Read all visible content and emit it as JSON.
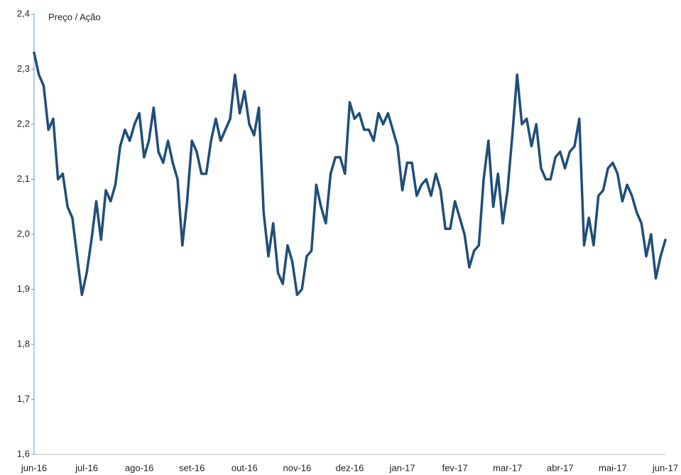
{
  "chart_data": {
    "type": "line",
    "title": "Preço / Ação",
    "categories": [
      "jun-16",
      null,
      null,
      null,
      null,
      null,
      null,
      null,
      null,
      null,
      null,
      "jul-16",
      null,
      null,
      null,
      null,
      null,
      null,
      null,
      null,
      null,
      null,
      "ago-16",
      null,
      null,
      null,
      null,
      null,
      null,
      null,
      null,
      null,
      null,
      "set-16",
      null,
      null,
      null,
      null,
      null,
      null,
      null,
      null,
      null,
      null,
      "out-16",
      null,
      null,
      null,
      null,
      null,
      null,
      null,
      null,
      null,
      null,
      "nov-16",
      null,
      null,
      null,
      null,
      null,
      null,
      null,
      null,
      null,
      null,
      "dez-16",
      null,
      null,
      null,
      null,
      null,
      null,
      null,
      null,
      null,
      null,
      "jan-17",
      null,
      null,
      null,
      null,
      null,
      null,
      null,
      null,
      null,
      null,
      "fev-17",
      null,
      null,
      null,
      null,
      null,
      null,
      null,
      null,
      null,
      null,
      "mar-17",
      null,
      null,
      null,
      null,
      null,
      null,
      null,
      null,
      null,
      null,
      "abr-17",
      null,
      null,
      null,
      null,
      null,
      null,
      null,
      null,
      null,
      null,
      "mai-17",
      null,
      null,
      null,
      null,
      null,
      null,
      null,
      null,
      null,
      null,
      "jun-17"
    ],
    "values": [
      2.33,
      2.29,
      2.27,
      2.19,
      2.21,
      2.1,
      2.11,
      2.05,
      2.03,
      1.96,
      1.89,
      1.93,
      1.99,
      2.06,
      1.99,
      2.08,
      2.06,
      2.09,
      2.16,
      2.19,
      2.17,
      2.2,
      2.22,
      2.14,
      2.17,
      2.23,
      2.15,
      2.13,
      2.17,
      2.13,
      2.1,
      1.98,
      2.06,
      2.17,
      2.15,
      2.11,
      2.11,
      2.17,
      2.21,
      2.17,
      2.19,
      2.21,
      2.29,
      2.22,
      2.26,
      2.2,
      2.18,
      2.23,
      2.04,
      1.96,
      2.02,
      1.93,
      1.91,
      1.98,
      1.95,
      1.89,
      1.9,
      1.96,
      1.97,
      2.09,
      2.05,
      2.02,
      2.11,
      2.14,
      2.14,
      2.11,
      2.24,
      2.21,
      2.22,
      2.19,
      2.19,
      2.17,
      2.22,
      2.2,
      2.22,
      2.19,
      2.16,
      2.08,
      2.13,
      2.13,
      2.07,
      2.09,
      2.1,
      2.07,
      2.11,
      2.08,
      2.01,
      2.01,
      2.06,
      2.03,
      2.0,
      1.94,
      1.97,
      1.98,
      2.1,
      2.17,
      2.05,
      2.11,
      2.02,
      2.08,
      2.18,
      2.29,
      2.2,
      2.21,
      2.16,
      2.2,
      2.12,
      2.1,
      2.1,
      2.14,
      2.15,
      2.12,
      2.15,
      2.16,
      2.21,
      1.98,
      2.03,
      1.98,
      2.07,
      2.08,
      2.12,
      2.13,
      2.11,
      2.06,
      2.09,
      2.07,
      2.04,
      2.02,
      1.96,
      2.0,
      1.92,
      1.96,
      1.99
    ],
    "color": "#1f4e79",
    "ylim": [
      1.6,
      2.4
    ],
    "yticks": [
      {
        "value": 1.6,
        "label": "1,6"
      },
      {
        "value": 1.7,
        "label": "1,7"
      },
      {
        "value": 1.8,
        "label": "1,8"
      },
      {
        "value": 1.9,
        "label": "1,9"
      },
      {
        "value": 2.0,
        "label": "2,0"
      },
      {
        "value": 2.1,
        "label": "2,1"
      },
      {
        "value": 2.2,
        "label": "2,2"
      },
      {
        "value": 2.3,
        "label": "2,3"
      },
      {
        "value": 2.4,
        "label": "2,4"
      }
    ]
  }
}
